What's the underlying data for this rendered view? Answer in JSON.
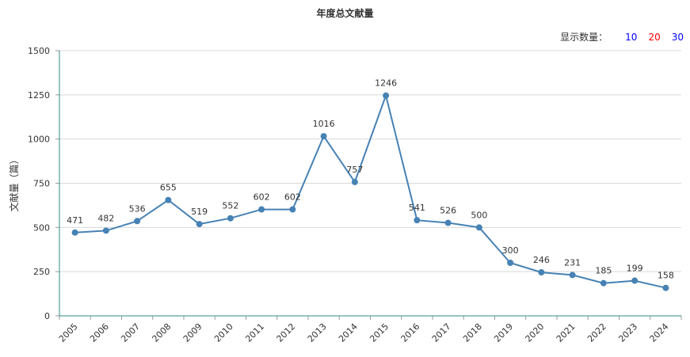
{
  "title": "年度总文献量",
  "display_count": {
    "label": "显示数量：",
    "options": [
      {
        "value": "10",
        "color": "#0000ff"
      },
      {
        "value": "20",
        "color": "#ff0000"
      },
      {
        "value": "30",
        "color": "#0000ff"
      }
    ]
  },
  "colors": {
    "line": "#4682b4",
    "axis": "#2e8b86",
    "grid": "#d9d9d9"
  },
  "chart_data": {
    "type": "line",
    "title": "年度总文献量",
    "xlabel": "",
    "ylabel": "文献量（篇）",
    "ylim": [
      0,
      1500
    ],
    "yticks": [
      0,
      250,
      500,
      750,
      1000,
      1250,
      1500
    ],
    "grid": true,
    "categories": [
      "2005",
      "2006",
      "2007",
      "2008",
      "2009",
      "2010",
      "2011",
      "2012",
      "2013",
      "2014",
      "2015",
      "2016",
      "2017",
      "2018",
      "2019",
      "2020",
      "2021",
      "2022",
      "2023",
      "2024"
    ],
    "series": [
      {
        "values": [
          471,
          482,
          536,
          655,
          519,
          552,
          602,
          602,
          1016,
          757,
          1246,
          541,
          526,
          500,
          300,
          246,
          231,
          185,
          199,
          158
        ]
      }
    ]
  }
}
